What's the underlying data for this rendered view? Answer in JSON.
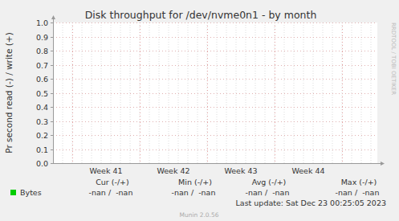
{
  "chart_data": {
    "type": "line",
    "title": "Disk throughput for /dev/nvme0n1 - by month",
    "y_label": "Pr second read (-) / write (+)",
    "categories": [
      "Week 41",
      "Week 42",
      "Week 43",
      "Week 44"
    ],
    "series": [
      {
        "name": "Bytes",
        "color": "#00cc00",
        "values": [
          null,
          null,
          null,
          null
        ],
        "stats": [
          "-nan /  -nan",
          "-nan /  -nan",
          "-nan /  -nan",
          "-nan /  -nan"
        ]
      }
    ],
    "stats_columns": [
      "Cur (-/+)",
      "Min (-/+)",
      "Avg (-/+)",
      "Max (-/+)"
    ],
    "ylim": [
      0,
      1
    ],
    "yticks": [
      {
        "value": 0,
        "label": "0.0"
      },
      {
        "value": 0.1,
        "label": "0.1"
      },
      {
        "value": 0.2,
        "label": "0.2"
      },
      {
        "value": 0.3,
        "label": "0.3"
      },
      {
        "value": 0.4,
        "label": "0.4"
      },
      {
        "value": 0.5,
        "label": "0.5"
      },
      {
        "value": 0.6,
        "label": "0.6"
      },
      {
        "value": 0.7,
        "label": "0.7"
      },
      {
        "value": 0.8,
        "label": "0.8"
      },
      {
        "value": 0.9,
        "label": "0.9"
      },
      {
        "value": 1,
        "label": "1.0"
      }
    ],
    "grid": true,
    "legend": "bottom",
    "last_update": "Last update: Sat Dec 23 00:25:05 2023",
    "footer": "Munin 2.0.56",
    "watermark": "RRDTOOL / TOBI OETIKER"
  }
}
